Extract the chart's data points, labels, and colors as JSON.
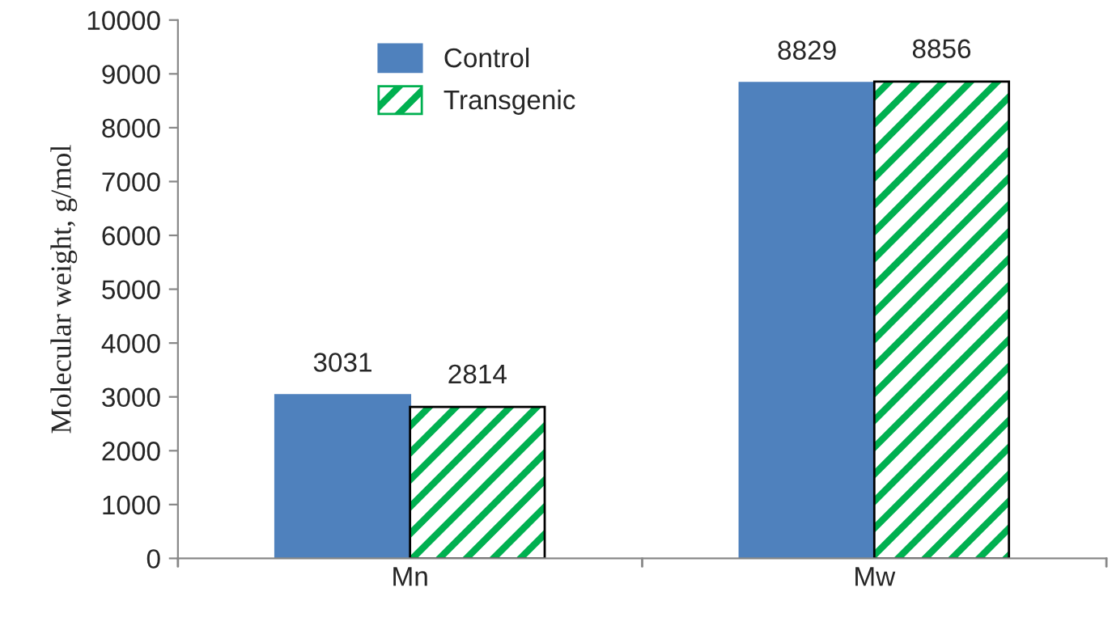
{
  "chart_data": {
    "type": "bar",
    "ylabel": "Molecular weight, g/mol",
    "categories": [
      "Mn",
      "Mw"
    ],
    "series": [
      {
        "name": "Control",
        "color": "#4f81bd",
        "values": [
          3031,
          8829
        ]
      },
      {
        "name": "Transgenic",
        "color": "#00b050",
        "values": [
          2814,
          8856
        ]
      }
    ],
    "ylim": [
      0,
      10000
    ],
    "yticks": [
      0,
      1000,
      2000,
      3000,
      4000,
      5000,
      6000,
      7000,
      8000,
      9000,
      10000
    ],
    "data_labels": true,
    "legend": "top left",
    "grid": false
  }
}
